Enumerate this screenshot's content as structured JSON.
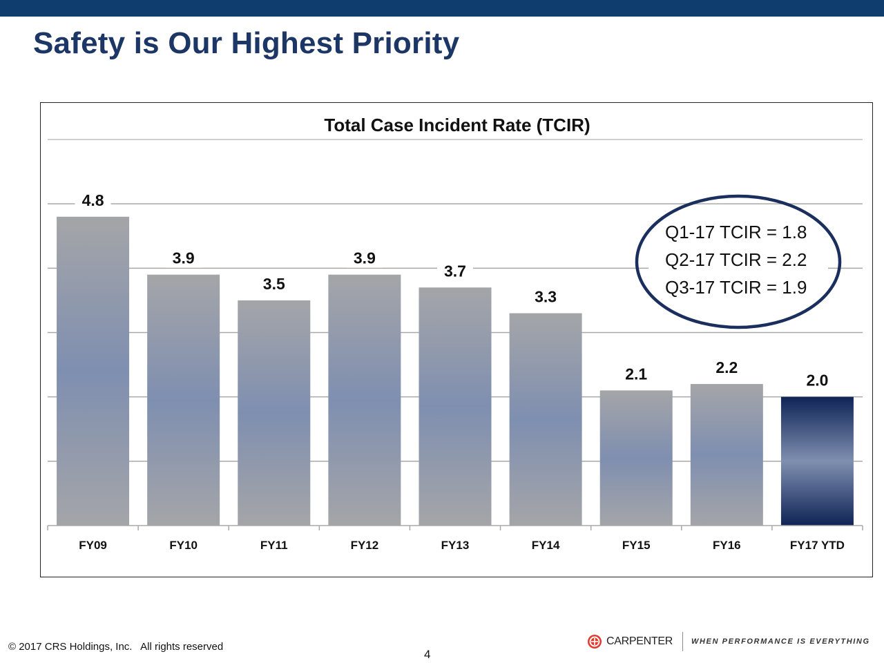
{
  "slide": {
    "title": "Safety is Our Highest Priority",
    "footer_copyright": "© 2017 CRS Holdings, Inc.   All rights reserved",
    "page_number": "4",
    "company_name": "CARPENTER",
    "tagline": "WHEN PERFORMANCE IS EVERYTHING"
  },
  "colors": {
    "top_bar": "#0e3d6e",
    "title": "#1c3766",
    "bar_gray": "#a4a5a8",
    "bar_blue": "#7f8fb0",
    "highlight_dark": "#0f2456",
    "circle": "#1b2f5e"
  },
  "chart_data": {
    "type": "bar",
    "title": "Total Case Incident Rate (TCIR)",
    "categories": [
      "FY09",
      "FY10",
      "FY11",
      "FY12",
      "FY13",
      "FY14",
      "FY15",
      "FY16",
      "FY17 YTD"
    ],
    "values": [
      4.8,
      3.9,
      3.5,
      3.9,
      3.7,
      3.3,
      2.1,
      2.2,
      2.0
    ],
    "value_labels": [
      "4.8",
      "3.9",
      "3.5",
      "3.9",
      "3.7",
      "3.3",
      "2.1",
      "2.2",
      "2.0"
    ],
    "highlighted_category": "FY17 YTD",
    "ylim": [
      0,
      6
    ],
    "gridlines": [
      1,
      2,
      3,
      4,
      5
    ],
    "xlabel": "",
    "ylabel": "",
    "annotation": {
      "lines": [
        "Q1-17 TCIR = 1.8",
        "Q2-17 TCIR = 2.2",
        "Q3-17 TCIR = 1.9"
      ]
    }
  }
}
